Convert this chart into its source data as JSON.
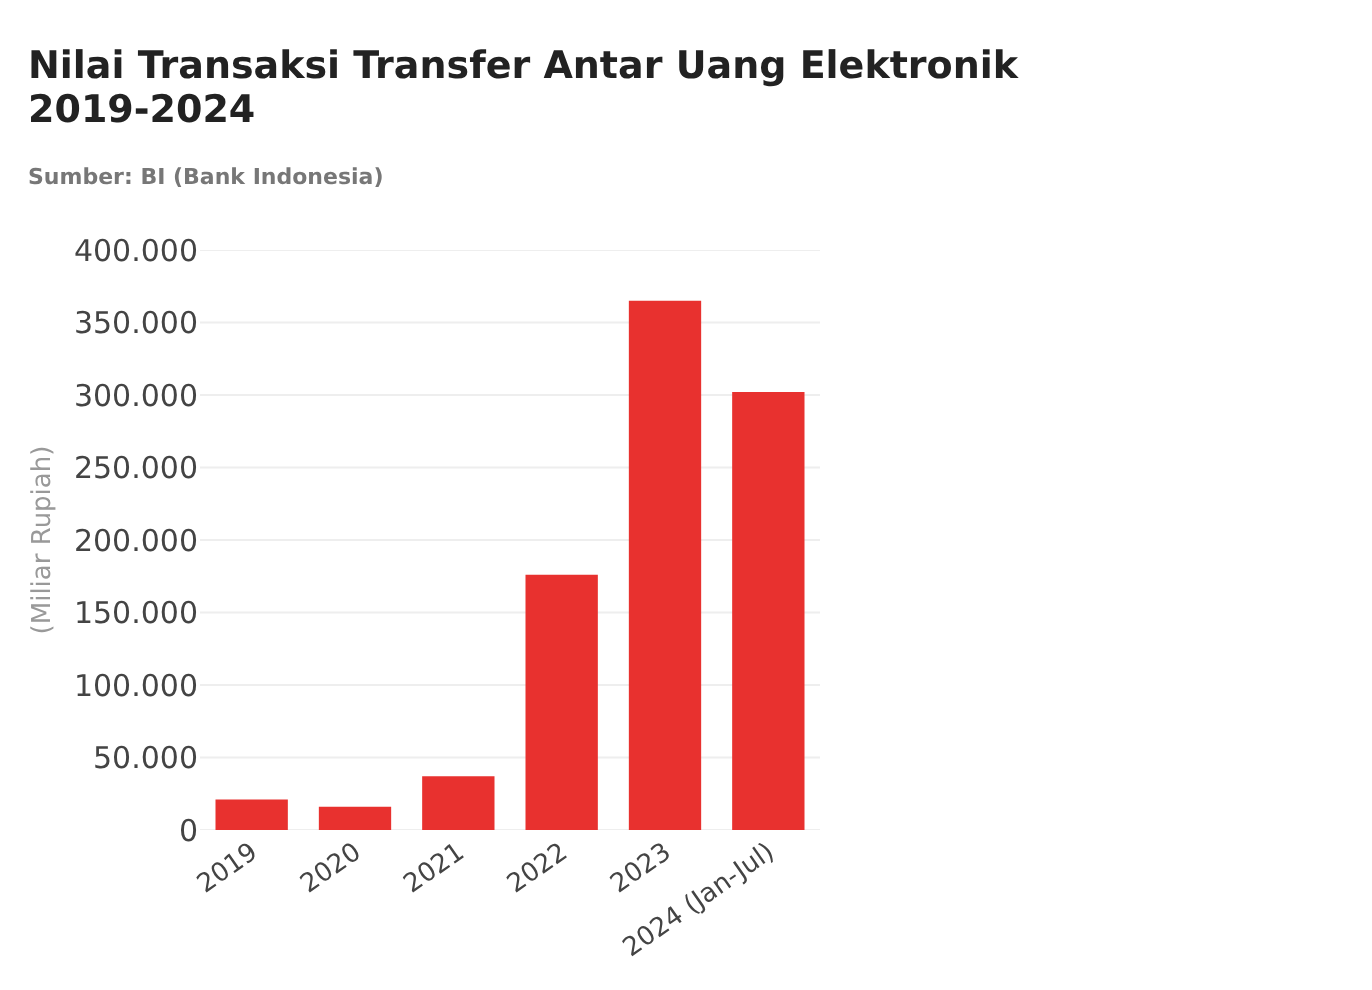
{
  "chart_data": {
    "type": "bar",
    "title": "Nilai Transaksi Transfer Antar Uang Elektronik\n2019-2024",
    "subtitle": "Sumber: BI (Bank Indonesia)",
    "ylabel": "(Miliar Rupiah)",
    "categories": [
      "2019",
      "2020",
      "2021",
      "2022",
      "2023",
      "2024 (Jan-Jul)"
    ],
    "values": [
      21000,
      16000,
      37000,
      176000,
      365000,
      302000
    ],
    "color": "#e8312f",
    "ylim": [
      0,
      400000
    ],
    "yticks": [
      {
        "value": 0,
        "label": "0"
      },
      {
        "value": 50000,
        "label": "50.000"
      },
      {
        "value": 100000,
        "label": "100.000"
      },
      {
        "value": 150000,
        "label": "150.000"
      },
      {
        "value": 200000,
        "label": "200.000"
      },
      {
        "value": 250000,
        "label": "250.000"
      },
      {
        "value": 300000,
        "label": "300.000"
      },
      {
        "value": 350000,
        "label": "350.000"
      },
      {
        "value": 400000,
        "label": "400.000"
      }
    ],
    "grid": true
  }
}
